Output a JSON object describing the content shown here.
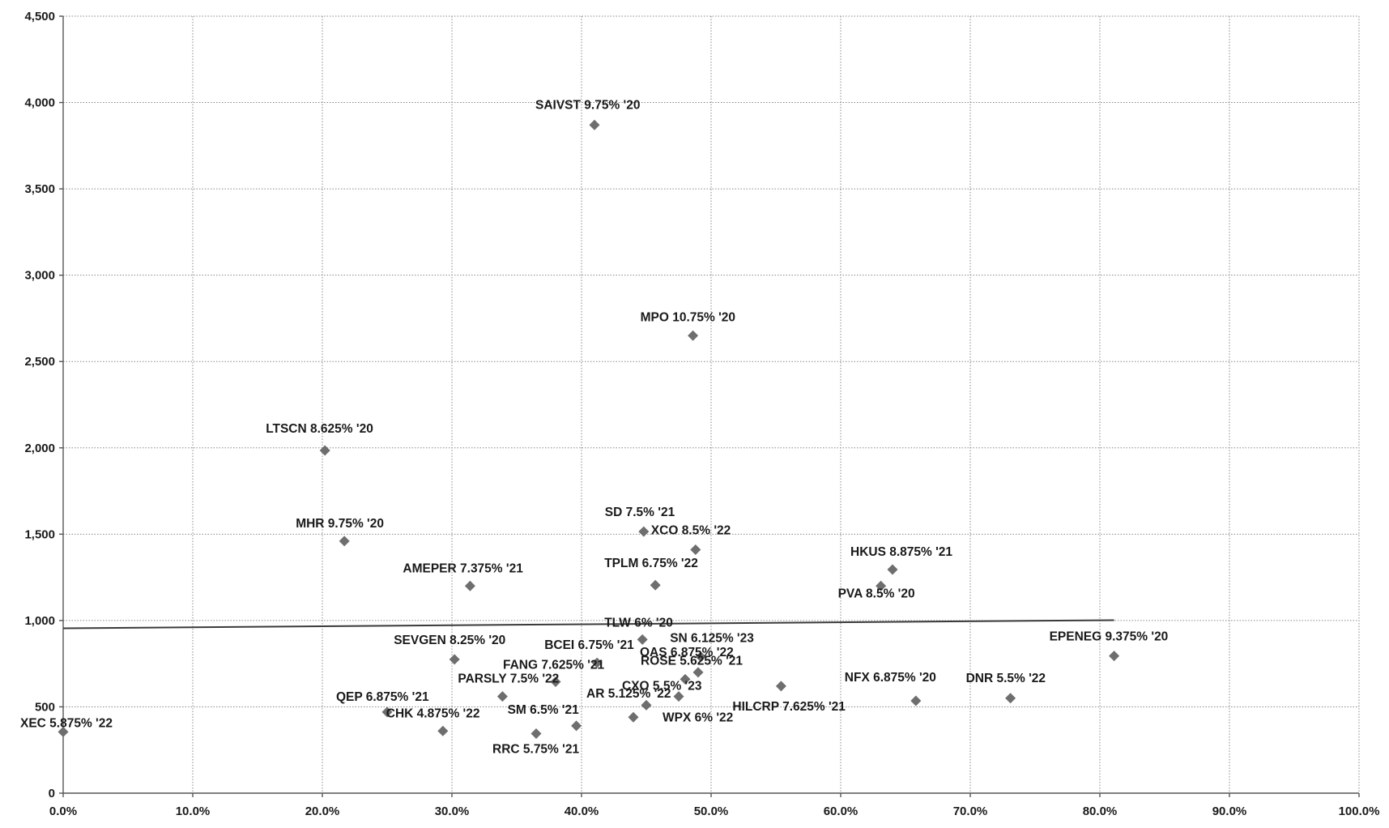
{
  "chart_data": {
    "type": "scatter",
    "title": "",
    "xlabel": "",
    "ylabel": "",
    "xlim": [
      0,
      1.0
    ],
    "ylim": [
      0,
      4500
    ],
    "x_ticks": [
      "0.0%",
      "10.0%",
      "20.0%",
      "30.0%",
      "40.0%",
      "50.0%",
      "60.0%",
      "70.0%",
      "80.0%",
      "90.0%",
      "100.0%"
    ],
    "y_ticks": [
      "0",
      "500",
      "1,000",
      "1,500",
      "2,000",
      "2,500",
      "3,000",
      "3,500",
      "4,000",
      "4,500"
    ],
    "grid": true,
    "marker": "diamond",
    "colors": {
      "marker": "#6e6e6e",
      "trendline": "#3a3a3a",
      "grid": "#8a8a8a",
      "text": "#1a1a1a"
    },
    "points": [
      {
        "label": "XEC 5.875% '22",
        "x": 0.0,
        "y": 355
      },
      {
        "label": "QEP 6.875% '21",
        "x": 0.25,
        "y": 470
      },
      {
        "label": "CHK 4.875% '22",
        "x": 0.293,
        "y": 360
      },
      {
        "label": "LTSCN 8.625% '20",
        "x": 0.202,
        "y": 1985
      },
      {
        "label": "MHR 9.75% '20",
        "x": 0.217,
        "y": 1460
      },
      {
        "label": "SEVGEN 8.25% '20",
        "x": 0.302,
        "y": 775
      },
      {
        "label": "AMEPER 7.375% '21",
        "x": 0.314,
        "y": 1200
      },
      {
        "label": "PARSLY 7.5% '22",
        "x": 0.339,
        "y": 560
      },
      {
        "label": "RRC 5.75% '21",
        "x": 0.365,
        "y": 345
      },
      {
        "label": "FANG 7.625% '21",
        "x": 0.38,
        "y": 645
      },
      {
        "label": "SM 6.5% '21",
        "x": 0.396,
        "y": 390
      },
      {
        "label": "SAIVST 9.75% '20",
        "x": 0.41,
        "y": 3870
      },
      {
        "label": "BCEI 6.75% '21",
        "x": 0.412,
        "y": 755
      },
      {
        "label": "AR 5.125% '22",
        "x": 0.44,
        "y": 440
      },
      {
        "label": "TLW 6% '20",
        "x": 0.447,
        "y": 890
      },
      {
        "label": "SD 7.5% '21",
        "x": 0.448,
        "y": 1515
      },
      {
        "label": "WPX 6% '22",
        "x": 0.45,
        "y": 510
      },
      {
        "label": "TPLM 6.75% '22",
        "x": 0.457,
        "y": 1205
      },
      {
        "label": "CXO 5.5% '23",
        "x": 0.475,
        "y": 560
      },
      {
        "label": "ROSE 5.625% '21",
        "x": 0.48,
        "y": 660
      },
      {
        "label": "MPO 10.75% '20",
        "x": 0.486,
        "y": 2650
      },
      {
        "label": "XCO 8.5% '22",
        "x": 0.488,
        "y": 1410
      },
      {
        "label": "OAS 6.875% '22",
        "x": 0.49,
        "y": 700
      },
      {
        "label": "SN 6.125% '23",
        "x": 0.492,
        "y": 790
      },
      {
        "label": "HILCRP 7.625% '21",
        "x": 0.554,
        "y": 620
      },
      {
        "label": "PVA 8.5% '20",
        "x": 0.631,
        "y": 1200
      },
      {
        "label": "HKUS 8.875% '21",
        "x": 0.64,
        "y": 1295
      },
      {
        "label": "NFX 6.875% '20",
        "x": 0.658,
        "y": 535
      },
      {
        "label": "DNR 5.5% '22",
        "x": 0.731,
        "y": 550
      },
      {
        "label": "EPENEG 9.375% '20",
        "x": 0.811,
        "y": 795
      }
    ],
    "trendline": {
      "x": [
        0.0,
        0.811
      ],
      "y": [
        955,
        1002
      ]
    }
  }
}
